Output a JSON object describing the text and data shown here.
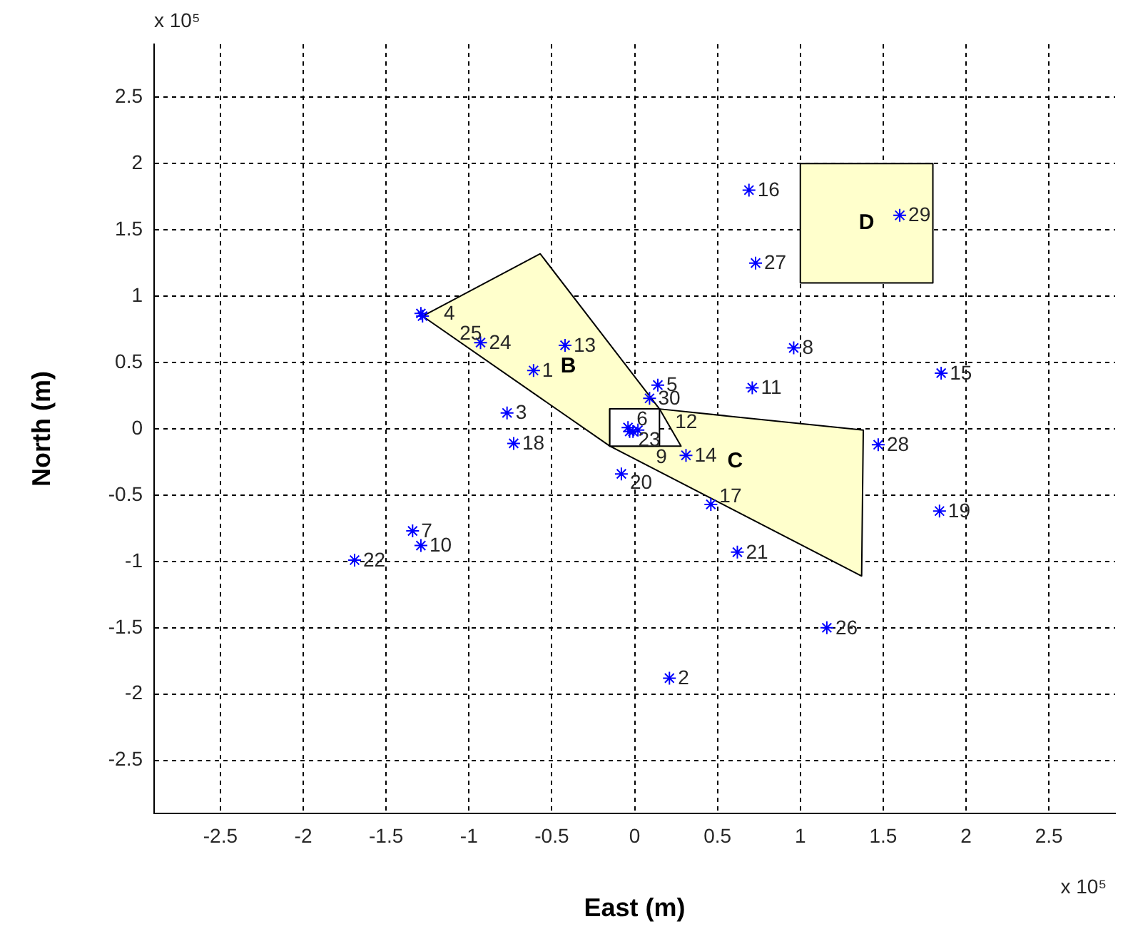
{
  "chart_data": {
    "type": "scatter",
    "xlabel": "East (m)",
    "ylabel": "North (m)",
    "annotations": [
      "x 10⁵",
      "x 10⁵",
      {
        "text": "1",
        "x": -0.61,
        "y": 0.44
      },
      {
        "text": "2",
        "x": 0.21,
        "y": -1.88
      },
      {
        "text": "3",
        "x": -0.77,
        "y": 0.12
      },
      {
        "text": "4",
        "x": -1.29,
        "y": 0.87
      },
      {
        "text": "5",
        "x": 0.14,
        "y": 0.33
      },
      {
        "text": "6",
        "x": -0.04,
        "y": 0.01
      },
      {
        "text": "7",
        "x": -1.34,
        "y": -0.77
      },
      {
        "text": "8",
        "x": 0.96,
        "y": 0.61
      },
      {
        "text": "9",
        "x": -0.01,
        "y": -0.02
      },
      {
        "text": "10",
        "x": -1.29,
        "y": -0.88
      },
      {
        "text": "11",
        "x": 0.71,
        "y": 0.31
      },
      {
        "text": "12",
        "x": 0.02,
        "y": -0.01
      },
      {
        "text": "13",
        "x": -0.42,
        "y": 0.63
      },
      {
        "text": "14",
        "x": 0.31,
        "y": -0.2
      },
      {
        "text": "15",
        "x": 1.85,
        "y": 0.42
      },
      {
        "text": "16",
        "x": 0.69,
        "y": 1.8
      },
      {
        "text": "17",
        "x": 0.46,
        "y": -0.57
      },
      {
        "text": "18",
        "x": -0.73,
        "y": -0.11
      },
      {
        "text": "19",
        "x": 1.84,
        "y": -0.62
      },
      {
        "text": "20",
        "x": -0.08,
        "y": -0.34
      },
      {
        "text": "21",
        "x": 0.62,
        "y": -0.93
      },
      {
        "text": "22",
        "x": -1.69,
        "y": -0.99
      },
      {
        "text": "23",
        "x": -0.03,
        "y": -0.02
      },
      {
        "text": "24",
        "x": -0.93,
        "y": 0.65
      },
      {
        "text": "25",
        "x": -1.28,
        "y": 0.85
      },
      {
        "text": "26",
        "x": 1.16,
        "y": -1.5
      },
      {
        "text": "27",
        "x": 0.73,
        "y": 1.25
      },
      {
        "text": "28",
        "x": 1.47,
        "y": -0.12
      },
      {
        "text": "29",
        "x": 1.6,
        "y": 1.61
      },
      {
        "text": "30",
        "x": 0.09,
        "y": 0.23
      }
    ],
    "xlim": [
      -2.9,
      2.9
    ],
    "ylim": [
      -2.9,
      2.9
    ],
    "xticks": [
      -2.5,
      -2,
      -1.5,
      -1,
      -0.5,
      0,
      0.5,
      1,
      1.5,
      2,
      2.5
    ],
    "yticks": [
      -2.5,
      -2,
      -1.5,
      -1,
      -0.5,
      0,
      0.5,
      1,
      1.5,
      2,
      2.5
    ],
    "grid": true,
    "series": [
      {
        "type": "area",
        "name": "B",
        "color": "#ffffcc",
        "x": [
          -1.28,
          -0.57,
          0.15,
          -0.15,
          -0.15
        ],
        "values": [
          0.85,
          1.32,
          0.15,
          0.15,
          -0.13
        ]
      },
      {
        "type": "area",
        "name": "C",
        "color": "#ffffcc",
        "x": [
          0.15,
          1.38,
          1.37,
          -0.15,
          0.28
        ],
        "values": [
          0.15,
          -0.01,
          -1.11,
          -0.13,
          -0.13
        ]
      },
      {
        "type": "area",
        "name": "D",
        "color": "#ffffcc",
        "x": [
          1.0,
          1.8,
          1.8,
          1.0
        ],
        "values": [
          1.1,
          1.1,
          2.0,
          2.0
        ]
      },
      {
        "type": "area",
        "color": "#ffffff",
        "x": [
          -0.15,
          0.15,
          0.15,
          -0.15
        ],
        "values": [
          0.15,
          0.15,
          -0.13,
          -0.13
        ]
      },
      {
        "color": "#0000ff",
        "marker": "cross",
        "x": [
          -0.61,
          0.21,
          -0.77,
          -1.29,
          0.14,
          -0.04,
          -1.34,
          0.96,
          -0.01,
          -1.29,
          0.71,
          0.02,
          -0.42,
          0.31,
          1.85,
          0.69,
          0.46,
          -0.73,
          1.84,
          -0.08,
          0.62,
          -1.69,
          -0.03,
          -0.93,
          -1.28,
          1.16,
          0.73,
          1.47,
          1.6,
          0.09
        ],
        "values": [
          0.44,
          -1.88,
          0.12,
          0.87,
          0.33,
          0.01,
          -0.77,
          0.61,
          -0.02,
          -0.88,
          0.31,
          -0.01,
          0.63,
          -0.2,
          0.42,
          1.8,
          -0.57,
          -0.11,
          -0.62,
          -0.34,
          -0.93,
          -0.99,
          -0.02,
          0.65,
          0.85,
          -1.5,
          1.25,
          -0.12,
          1.61,
          0.23
        ]
      }
    ]
  }
}
